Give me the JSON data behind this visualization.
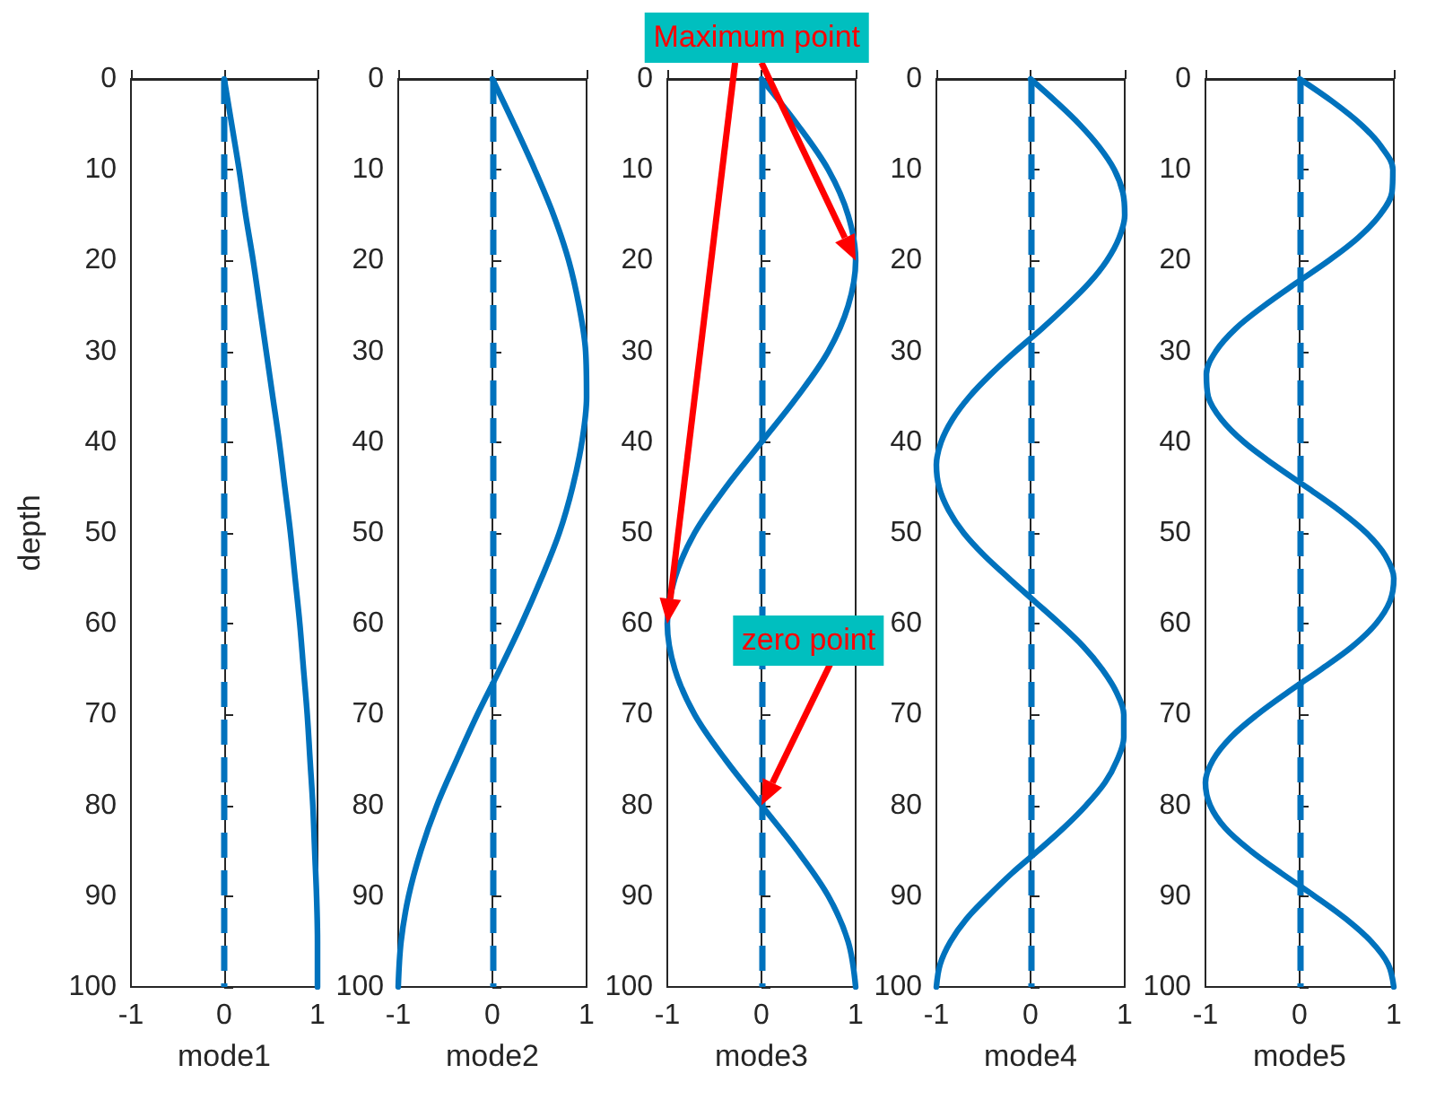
{
  "chart_data": [
    {
      "type": "line",
      "xlabel": "mode1",
      "ylabel": "depth",
      "xlim": [
        -1,
        1
      ],
      "xticks": [
        -1,
        0,
        1
      ],
      "ylim": [
        100,
        0
      ],
      "yticks": [
        0,
        10,
        20,
        30,
        40,
        50,
        60,
        70,
        80,
        90,
        100
      ],
      "line_style": "solid",
      "series": [
        {
          "color": "#0072bd",
          "x": [
            0,
            0.08,
            0.16,
            0.23,
            0.31,
            0.38,
            0.45,
            0.52,
            0.59,
            0.65,
            0.71,
            0.76,
            0.81,
            0.85,
            0.89,
            0.92,
            0.95,
            0.97,
            0.99,
            1.0,
            1
          ],
          "values": [
            0,
            5,
            10,
            15,
            20,
            25,
            30,
            35,
            40,
            45,
            50,
            55,
            60,
            65,
            70,
            75,
            80,
            85,
            90,
            95,
            100
          ]
        }
      ],
      "ref_lines": [
        {
          "axis": "x",
          "value": 0,
          "color": "#0072bd",
          "line_style": "dashed"
        }
      ]
    },
    {
      "type": "line",
      "xlabel": "mode2",
      "xlim": [
        -1,
        1
      ],
      "xticks": [
        -1,
        0,
        1
      ],
      "ylim": [
        100,
        0
      ],
      "yticks": [
        0,
        10,
        20,
        30,
        40,
        50,
        60,
        70,
        80,
        90,
        100
      ],
      "line_style": "solid",
      "series": [
        {
          "color": "#0072bd",
          "x": [
            0,
            0.23,
            0.45,
            0.65,
            0.81,
            0.92,
            0.99,
            1.0,
            0.95,
            0.85,
            0.71,
            0.52,
            0.31,
            0.08,
            -0.16,
            -0.38,
            -0.59,
            -0.76,
            -0.89,
            -0.97,
            -1
          ],
          "values": [
            0,
            5,
            10,
            15,
            20,
            25,
            30,
            35,
            40,
            45,
            50,
            55,
            60,
            65,
            70,
            75,
            80,
            85,
            90,
            95,
            100
          ]
        }
      ],
      "ref_lines": [
        {
          "axis": "x",
          "value": 0,
          "color": "#0072bd",
          "line_style": "dashed"
        }
      ]
    },
    {
      "type": "line",
      "xlabel": "mode3",
      "xlim": [
        -1,
        1
      ],
      "xticks": [
        -1,
        0,
        1
      ],
      "ylim": [
        100,
        0
      ],
      "yticks": [
        0,
        10,
        20,
        30,
        40,
        50,
        60,
        70,
        80,
        90,
        100
      ],
      "line_style": "solid",
      "series": [
        {
          "color": "#0072bd",
          "x": [
            0,
            0.38,
            0.71,
            0.92,
            1,
            0.92,
            0.71,
            0.38,
            0,
            -0.38,
            -0.71,
            -0.92,
            -1,
            -0.92,
            -0.71,
            -0.38,
            0,
            0.38,
            0.71,
            0.92,
            1
          ],
          "values": [
            0,
            5,
            10,
            15,
            20,
            25,
            30,
            35,
            40,
            45,
            50,
            55,
            60,
            65,
            70,
            75,
            80,
            85,
            90,
            95,
            100
          ]
        }
      ],
      "ref_lines": [
        {
          "axis": "x",
          "value": 0,
          "color": "#0072bd",
          "line_style": "dashed"
        }
      ],
      "annotations": [
        "Maximum point",
        "zero point"
      ]
    },
    {
      "type": "line",
      "xlabel": "mode4",
      "xlim": [
        -1,
        1
      ],
      "xticks": [
        -1,
        0,
        1
      ],
      "ylim": [
        100,
        0
      ],
      "yticks": [
        0,
        10,
        20,
        30,
        40,
        50,
        60,
        70,
        80,
        90,
        100
      ],
      "line_style": "solid",
      "series": [
        {
          "color": "#0072bd",
          "x": [
            0,
            0.27,
            0.52,
            0.73,
            0.89,
            0.98,
            1.0,
            0.94,
            0.81,
            0.62,
            0.38,
            0.12,
            -0.16,
            -0.42,
            -0.65,
            -0.83,
            -0.95,
            -1.0,
            -0.97,
            -0.87,
            -0.71,
            -0.49,
            -0.23,
            0.04,
            0.31,
            0.56,
            0.76,
            0.91,
            0.99,
            0.99,
            0.92,
            0.79,
            0.59,
            0.35,
            0.08,
            -0.2,
            -0.45,
            -0.68,
            -0.85,
            -0.96,
            -1
          ],
          "values": [
            0,
            2.5,
            5,
            7.5,
            10,
            12.5,
            15,
            17.5,
            20,
            22.5,
            25,
            27.5,
            30,
            32.5,
            35,
            37.5,
            40,
            42.5,
            45,
            47.5,
            50,
            52.5,
            55,
            57.5,
            60,
            62.5,
            65,
            67.5,
            70,
            72.5,
            75,
            77.5,
            80,
            82.5,
            85,
            87.5,
            90,
            92.5,
            95,
            97.5,
            100
          ]
        }
      ],
      "ref_lines": [
        {
          "axis": "x",
          "value": 0,
          "color": "#0072bd",
          "line_style": "dashed"
        }
      ]
    },
    {
      "type": "line",
      "xlabel": "mode5",
      "xlim": [
        -1,
        1
      ],
      "xticks": [
        -1,
        0,
        1
      ],
      "ylim": [
        100,
        0
      ],
      "yticks": [
        0,
        10,
        20,
        30,
        40,
        50,
        60,
        70,
        80,
        90,
        100
      ],
      "line_style": "solid",
      "series": [
        {
          "color": "#0072bd",
          "x": [
            0,
            0.35,
            0.65,
            0.87,
            0.99,
            0.98,
            0.85,
            0.62,
            0.31,
            -0.04,
            -0.38,
            -0.68,
            -0.89,
            -0.99,
            -0.97,
            -0.83,
            -0.59,
            -0.27,
            0.08,
            0.42,
            0.71,
            0.91,
            1.0,
            0.96,
            0.81,
            0.56,
            0.23,
            -0.12,
            -0.45,
            -0.73,
            -0.92,
            -1.0,
            -0.95,
            -0.79,
            -0.52,
            -0.19,
            0.16,
            0.49,
            0.76,
            0.94,
            1
          ],
          "values": [
            0,
            2.5,
            5,
            7.5,
            10,
            12.5,
            15,
            17.5,
            20,
            22.5,
            25,
            27.5,
            30,
            32.5,
            35,
            37.5,
            40,
            42.5,
            45,
            47.5,
            50,
            52.5,
            55,
            57.5,
            60,
            62.5,
            65,
            67.5,
            70,
            72.5,
            75,
            77.5,
            80,
            82.5,
            85,
            87.5,
            90,
            92.5,
            95,
            97.5,
            100
          ]
        }
      ],
      "ref_lines": [
        {
          "axis": "x",
          "value": 0,
          "color": "#0072bd",
          "line_style": "dashed"
        }
      ]
    }
  ]
}
